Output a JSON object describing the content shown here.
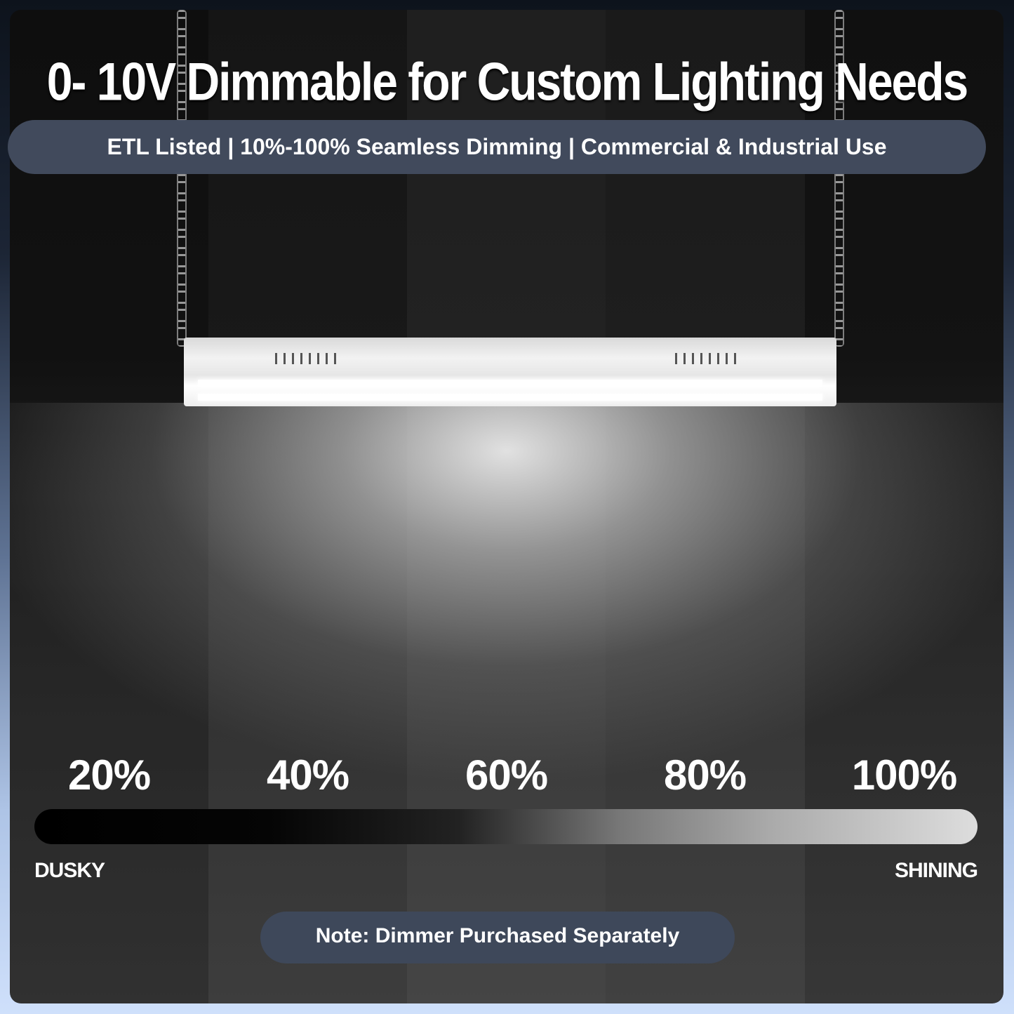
{
  "headline": "0- 10V Dimmable for Custom Lighting Needs",
  "subtitle": "ETL Listed | 10%-100% Seamless Dimming | Commercial & Industrial Use",
  "brightness_levels": [
    "20%",
    "40%",
    "60%",
    "80%",
    "100%"
  ],
  "scale": {
    "min_label": "DUSKY",
    "max_label": "SHINING"
  },
  "note": "Note: Dimmer Purchased Separately",
  "colors": {
    "pill": "#414a5c",
    "text": "#ffffff"
  }
}
